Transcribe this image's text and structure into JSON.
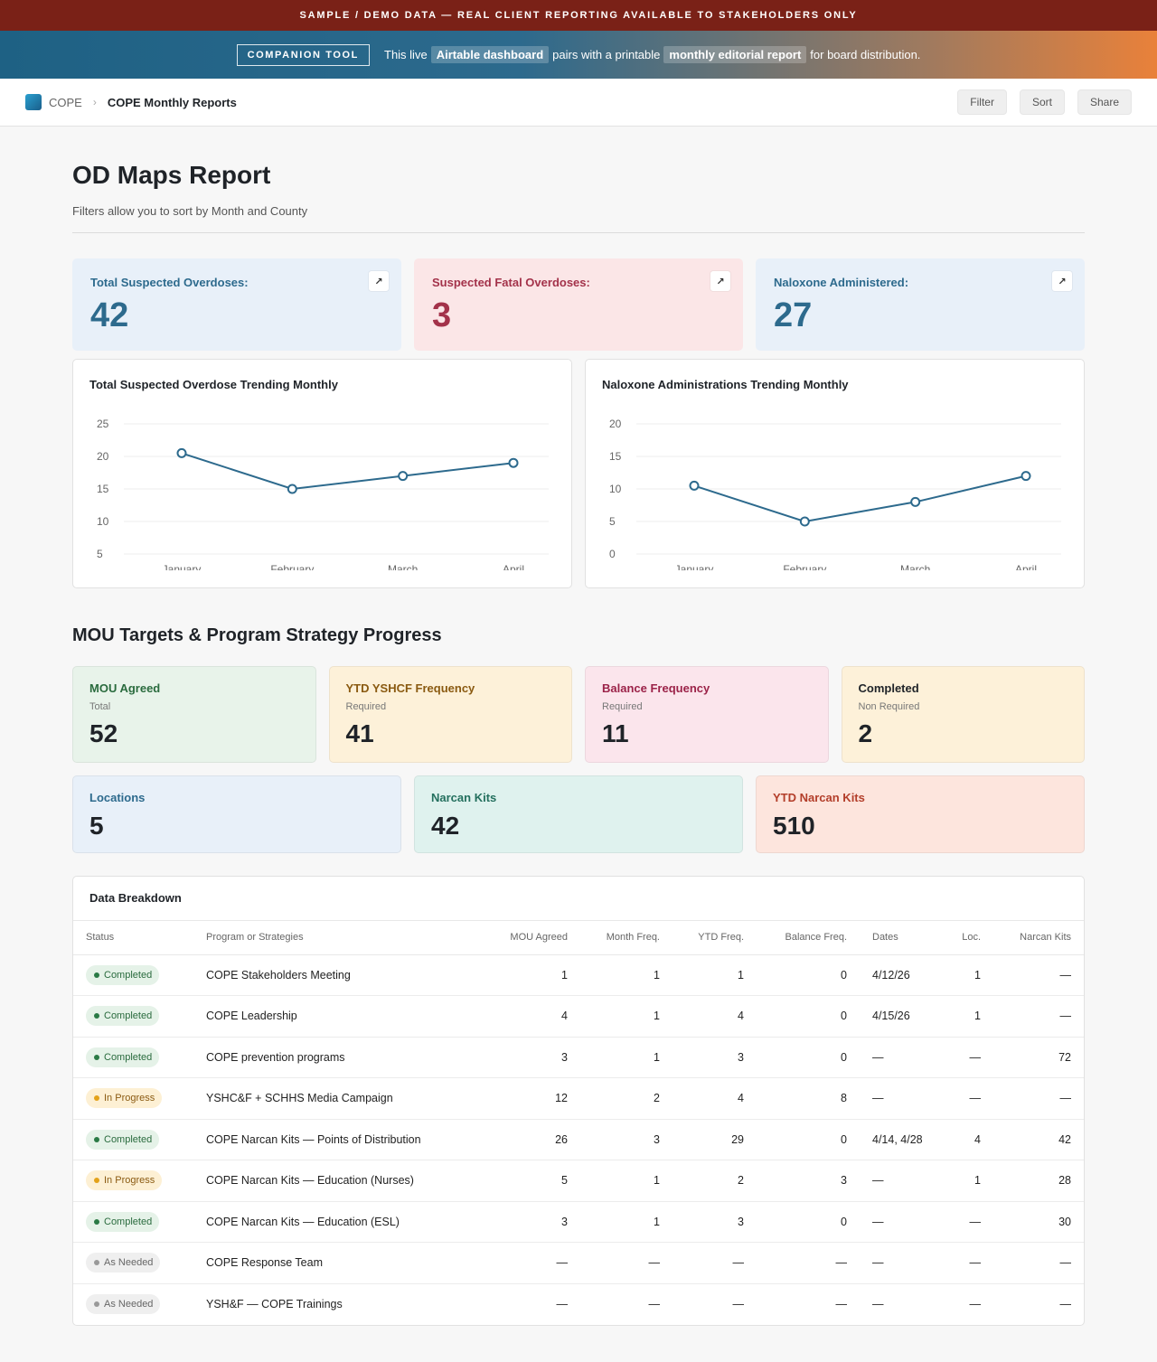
{
  "banner": {
    "notice": "SAMPLE / DEMO DATA — REAL CLIENT REPORTING AVAILABLE TO STAKEHOLDERS ONLY",
    "tool_label": "COMPANION TOOL",
    "text_1": "This live",
    "highlight_1": "Airtable dashboard",
    "text_2": "pairs with a printable",
    "highlight_2": "monthly editorial report",
    "text_3": "for board distribution."
  },
  "nav": {
    "root": "COPE",
    "separator": "›",
    "current": "COPE Monthly Reports",
    "buttons": {
      "filter": "Filter",
      "sort": "Sort",
      "share": "Share"
    }
  },
  "page": {
    "title": "OD Maps Report",
    "subtitle": "Filters allow you to sort by Month and County"
  },
  "stats": [
    {
      "label": "Total Suspected Overdoses:",
      "value": "42",
      "icon": "expand-icon"
    },
    {
      "label": "Suspected Fatal Overdoses:",
      "value": "3",
      "icon": "expand-icon"
    },
    {
      "label": "Naloxone Administered:",
      "value": "27",
      "icon": "expand-icon"
    }
  ],
  "expand_glyph": "↗",
  "chart_data": [
    {
      "type": "line",
      "title": "Total Suspected Overdose Trending Monthly",
      "categories": [
        "January",
        "February",
        "March",
        "April"
      ],
      "values": [
        20.5,
        15,
        17,
        19
      ],
      "ylim": [
        5,
        25
      ],
      "yticks": [
        "25",
        "20",
        "15",
        "10",
        "5"
      ],
      "grid": true,
      "color": "#2d6a8d"
    },
    {
      "type": "line",
      "title": "Naloxone Administrations Trending Monthly",
      "categories": [
        "January",
        "February",
        "March",
        "April"
      ],
      "values": [
        10.5,
        5,
        8,
        12
      ],
      "ylim": [
        0,
        20
      ],
      "yticks": [
        "20",
        "15",
        "10",
        "5",
        "0"
      ],
      "grid": true,
      "color": "#2d6a8d"
    }
  ],
  "mou": {
    "title": "MOU Targets & Program Strategy Progress",
    "row1": [
      {
        "label": "MOU Agreed",
        "sub": "Total",
        "value": "52"
      },
      {
        "label": "YTD YSHCF Frequency",
        "sub": "Required",
        "value": "41"
      },
      {
        "label": "Balance Frequency",
        "sub": "Required",
        "value": "11"
      },
      {
        "label": "Completed",
        "sub": "Non Required",
        "value": "2"
      }
    ],
    "row2": [
      {
        "label": "Locations",
        "value": "5"
      },
      {
        "label": "Narcan Kits",
        "value": "42"
      },
      {
        "label": "YTD Narcan Kits",
        "value": "510"
      }
    ]
  },
  "table": {
    "title": "Data Breakdown",
    "headers": [
      "Status",
      "Program or Strategies",
      "MOU Agreed",
      "Month Freq.",
      "YTD Freq.",
      "Balance Freq.",
      "Dates",
      "Loc.",
      "Narcan Kits"
    ],
    "rows": [
      {
        "status": "Completed",
        "kind": "completed",
        "program": "COPE Stakeholders Meeting",
        "mou": "1",
        "month": "1",
        "ytd": "1",
        "balance": "0",
        "dates": "4/12/26",
        "loc": "1",
        "narcan": "—"
      },
      {
        "status": "Completed",
        "kind": "completed",
        "program": "COPE Leadership",
        "mou": "4",
        "month": "1",
        "ytd": "4",
        "balance": "0",
        "dates": "4/15/26",
        "loc": "1",
        "narcan": "—"
      },
      {
        "status": "Completed",
        "kind": "completed",
        "program": "COPE prevention programs",
        "mou": "3",
        "month": "1",
        "ytd": "3",
        "balance": "0",
        "dates": "—",
        "loc": "—",
        "narcan": "72"
      },
      {
        "status": "In Progress",
        "kind": "progress",
        "program": "YSHC&F + SCHHS Media Campaign",
        "mou": "12",
        "month": "2",
        "ytd": "4",
        "balance": "8",
        "dates": "—",
        "loc": "—",
        "narcan": "—"
      },
      {
        "status": "Completed",
        "kind": "completed",
        "program": "COPE Narcan Kits — Points of Distribution",
        "mou": "26",
        "month": "3",
        "ytd": "29",
        "balance": "0",
        "dates": "4/14, 4/28",
        "loc": "4",
        "narcan": "42"
      },
      {
        "status": "In Progress",
        "kind": "progress",
        "program": "COPE Narcan Kits — Education (Nurses)",
        "mou": "5",
        "month": "1",
        "ytd": "2",
        "balance": "3",
        "dates": "—",
        "loc": "1",
        "narcan": "28"
      },
      {
        "status": "Completed",
        "kind": "completed",
        "program": "COPE Narcan Kits — Education (ESL)",
        "mou": "3",
        "month": "1",
        "ytd": "3",
        "balance": "0",
        "dates": "—",
        "loc": "—",
        "narcan": "30"
      },
      {
        "status": "As Needed",
        "kind": "needed",
        "program": "COPE Response Team",
        "mou": "—",
        "month": "—",
        "ytd": "—",
        "balance": "—",
        "dates": "—",
        "loc": "—",
        "narcan": "—"
      },
      {
        "status": "As Needed",
        "kind": "needed",
        "program": "YSH&F — COPE Trainings",
        "mou": "—",
        "month": "—",
        "ytd": "—",
        "balance": "—",
        "dates": "—",
        "loc": "—",
        "narcan": "—"
      }
    ]
  }
}
